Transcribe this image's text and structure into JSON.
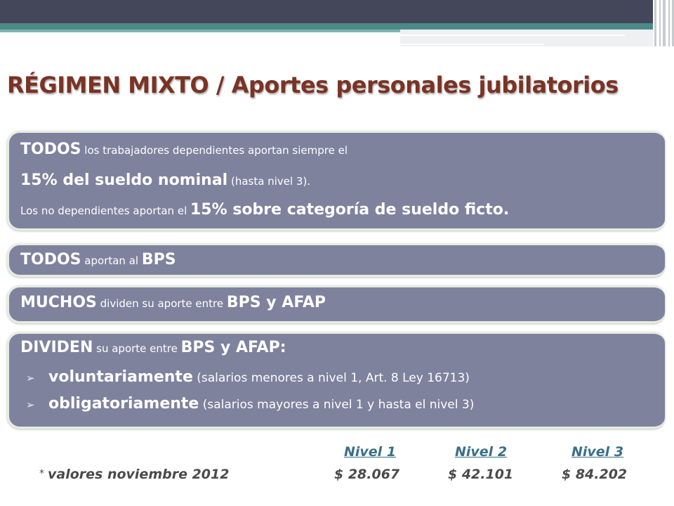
{
  "slide": {
    "title": "RÉGIMEN MIXTO / Aportes personales jubilatorios",
    "box1": {
      "line1": {
        "strong": "TODOS",
        "rest": " los trabajadores dependientes aportan siempre el"
      },
      "line2": {
        "strong": "15% del sueldo nominal",
        "rest": " (hasta nivel 3)."
      },
      "line3": {
        "lead": "Los no dependientes aportan el ",
        "strong": "15% sobre categoría de sueldo ficto",
        "tail": "."
      }
    },
    "box2": {
      "strong": "TODOS",
      "mid": " aportan al ",
      "strong2": "BPS"
    },
    "box3": {
      "strong": "MUCHOS",
      "mid": " dividen su aporte entre ",
      "strong2": "BPS y AFAP"
    },
    "box4": {
      "line1": {
        "strong": "DIVIDEN",
        "mid": " su aporte entre ",
        "strong2": "BPS y AFAP:"
      },
      "bullets": [
        {
          "strong": "voluntariamente",
          "rest": " (salarios menores a nivel 1, Art. 8 Ley 16713)"
        },
        {
          "strong": "obligatoriamente",
          "rest": " (salarios mayores a nivel 1 y hasta el nivel 3)"
        }
      ]
    },
    "footer": {
      "star": "*",
      "note": "valores noviembre 2012",
      "levels": [
        "Nivel 1",
        "Nivel 2",
        "Nivel 3"
      ],
      "values": [
        "$ 28.067",
        "$ 42.101",
        "$ 84.202"
      ]
    }
  }
}
